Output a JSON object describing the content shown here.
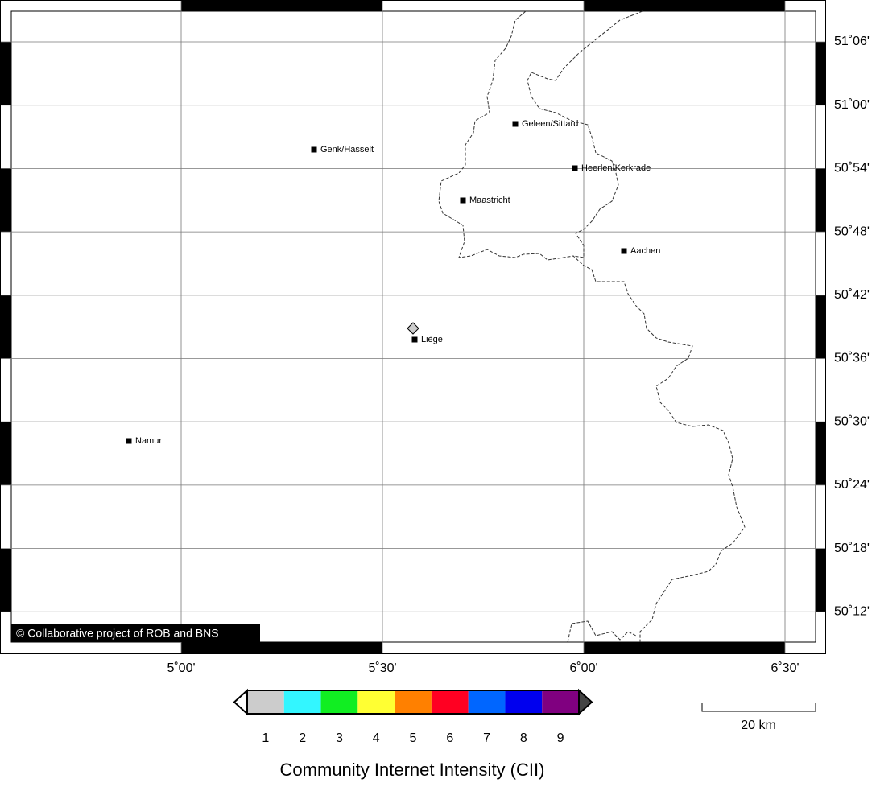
{
  "map": {
    "lon_labels": [
      "5˚00'",
      "5˚30'",
      "6˚00'",
      "6˚30'"
    ],
    "lat_labels": [
      "51˚06'",
      "51˚00'",
      "50˚54'",
      "50˚48'",
      "50˚42'",
      "50˚36'",
      "50˚30'",
      "50˚24'",
      "50˚18'",
      "50˚12'"
    ],
    "cities": [
      "Genk/Hasselt",
      "Geleen/Sittard",
      "Heerlen/Kerkrade",
      "Maastricht",
      "Aachen",
      "Liège",
      "Namur"
    ],
    "copyright": "© Collaborative project of ROB and BNS",
    "scale_label": "20 km"
  },
  "legend": {
    "title": "Community Internet Intensity (CII)",
    "classes": [
      {
        "label": "1",
        "color": "#cccccc"
      },
      {
        "label": "2",
        "color": "#33f6ff"
      },
      {
        "label": "3",
        "color": "#11ee22"
      },
      {
        "label": "4",
        "color": "#ffff33"
      },
      {
        "label": "5",
        "color": "#ff8000"
      },
      {
        "label": "6",
        "color": "#ff0022"
      },
      {
        "label": "7",
        "color": "#0066ff"
      },
      {
        "label": "8",
        "color": "#0000ee"
      },
      {
        "label": "9",
        "color": "#800080"
      }
    ]
  }
}
